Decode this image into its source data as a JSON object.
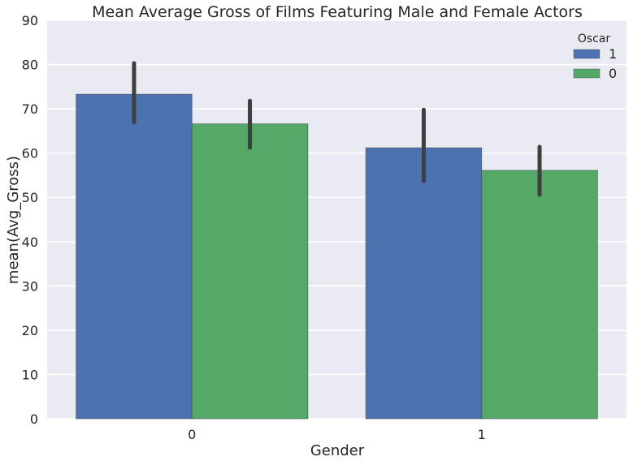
{
  "chart_data": {
    "type": "bar",
    "title": "Mean Average Gross of Films Featuring Male and Female Actors",
    "xlabel": "Gender",
    "ylabel": "mean(Avg_Gross)",
    "categories": [
      "0",
      "1"
    ],
    "ylim": [
      0,
      90
    ],
    "yticks": [
      "0",
      "10",
      "20",
      "30",
      "40",
      "50",
      "60",
      "70",
      "80",
      "90"
    ],
    "grid": true,
    "legend": {
      "title": "Oscar",
      "placement": "top-right"
    },
    "series": [
      {
        "name": "1",
        "color": "#4c72b0",
        "values": [
          73.3,
          61.2
        ],
        "error_low": [
          67.0,
          53.7
        ],
        "error_high": [
          80.3,
          69.8
        ]
      },
      {
        "name": "0",
        "color": "#55a868",
        "values": [
          66.6,
          56.1
        ],
        "error_low": [
          61.2,
          50.6
        ],
        "error_high": [
          71.8,
          61.4
        ]
      }
    ]
  }
}
